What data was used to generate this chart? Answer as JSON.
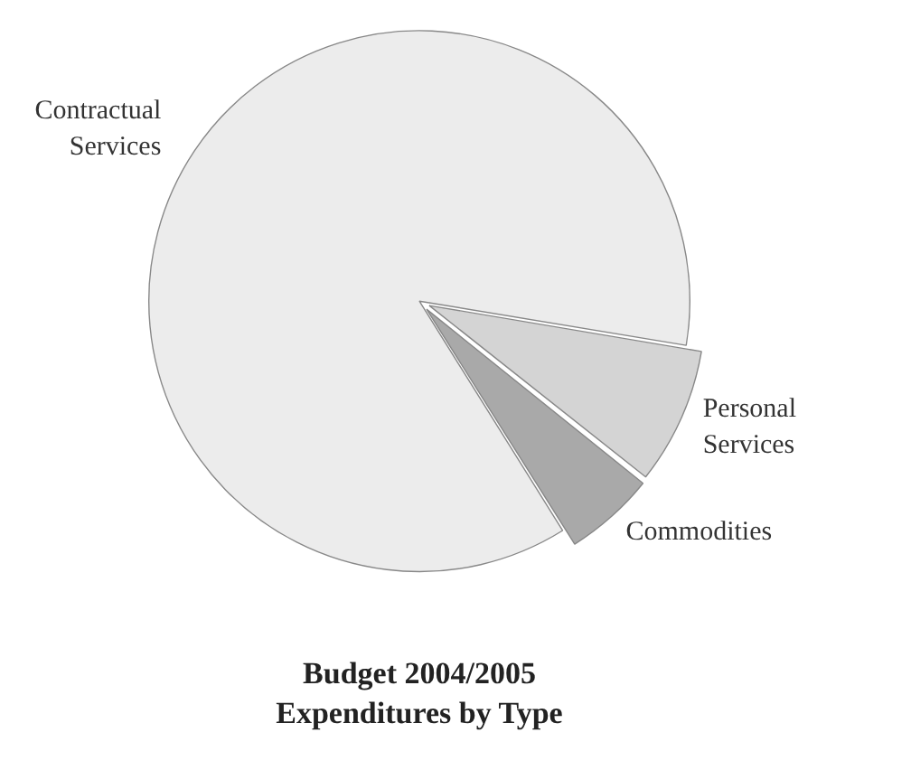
{
  "chart_data": {
    "type": "pie",
    "title": "Budget 2004/2005",
    "subtitle": "Expenditures by Type",
    "categories": [
      "Contractual Services",
      "Personal Services",
      "Commodities"
    ],
    "values": [
      86.5,
      8.1,
      5.4
    ],
    "colors": [
      "#ececec",
      "#d4d4d4",
      "#a9a9a9"
    ],
    "legend": false
  }
}
